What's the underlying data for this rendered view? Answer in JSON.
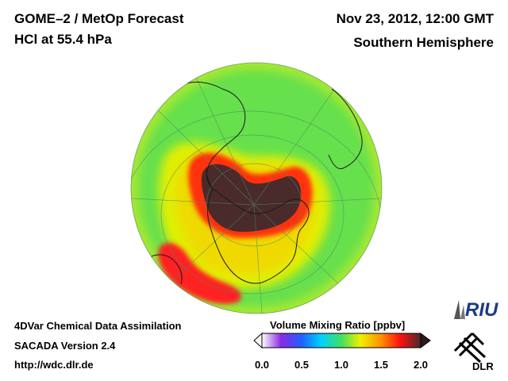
{
  "header": {
    "title_line1": "GOME–2 / MetOp Forecast",
    "title_line2": "HCl at 55.4 hPa",
    "date": "Nov 23, 2012, 12:00 GMT",
    "region": "Southern Hemisphere"
  },
  "footer": {
    "line1": "4DVar Chemical Data Assimilation",
    "line2": "SACADA Version 2.4",
    "line3": "http://wdc.dlr.de"
  },
  "colorbar": {
    "title": "Volume Mixing Ratio [ppbv]",
    "min": 0.0,
    "max": 2.0,
    "ticks": [
      "0.0",
      "0.5",
      "1.0",
      "1.5",
      "2.0"
    ],
    "colors": [
      "#ffffff",
      "#8a2be2",
      "#2060ff",
      "#00d0ff",
      "#40e060",
      "#f0f000",
      "#ff9000",
      "#ff1010",
      "#4a2a2a"
    ]
  },
  "logos": {
    "riu": "RIU",
    "dlr": "DLR"
  },
  "map": {
    "projection": "orthographic",
    "hemisphere": "south",
    "ocean_background": "#60e050"
  }
}
